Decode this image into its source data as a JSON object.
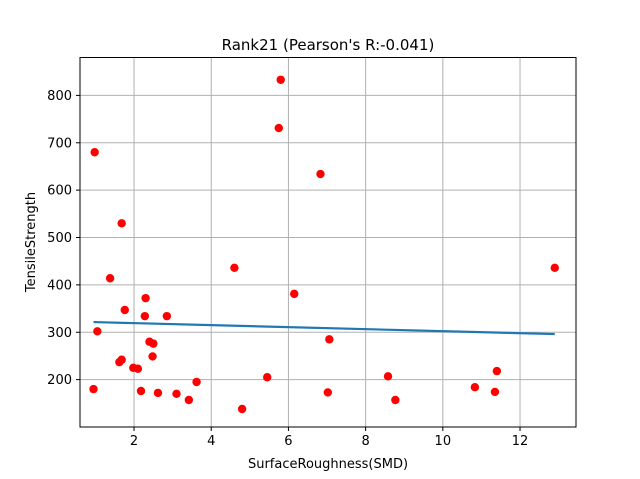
{
  "chart_data": {
    "type": "scatter",
    "title": "Rank21 (Pearson's R:-0.041)",
    "xlabel": "SurfaceRoughness(SMD)",
    "ylabel": "TensileStrength",
    "xlim": [
      0.6,
      13.45
    ],
    "ylim": [
      100,
      880
    ],
    "xticks": [
      2,
      4,
      6,
      8,
      10,
      12
    ],
    "yticks": [
      200,
      300,
      400,
      500,
      600,
      700,
      800
    ],
    "grid": true,
    "points": {
      "color": "#ff0000",
      "x": [
        0.95,
        0.98,
        1.05,
        1.38,
        1.62,
        1.68,
        1.68,
        1.76,
        1.98,
        2.1,
        2.18,
        2.28,
        2.3,
        2.4,
        2.48,
        2.5,
        2.62,
        2.85,
        3.1,
        3.42,
        3.62,
        4.6,
        4.8,
        5.45,
        5.75,
        5.8,
        6.15,
        6.83,
        7.02,
        7.06,
        8.58,
        8.77,
        10.83,
        11.35,
        11.4,
        12.9
      ],
      "y": [
        180,
        680,
        302,
        414,
        237,
        242,
        530,
        347,
        225,
        223,
        176,
        334,
        372,
        280,
        249,
        276,
        172,
        334,
        170,
        157,
        195,
        436,
        138,
        205,
        731,
        833,
        381,
        634,
        173,
        285,
        207,
        157,
        184,
        174,
        218,
        436
      ]
    },
    "trend_line": {
      "color": "#1f77b4",
      "x": [
        0.95,
        12.9
      ],
      "y": [
        321.5,
        296.2
      ]
    }
  }
}
